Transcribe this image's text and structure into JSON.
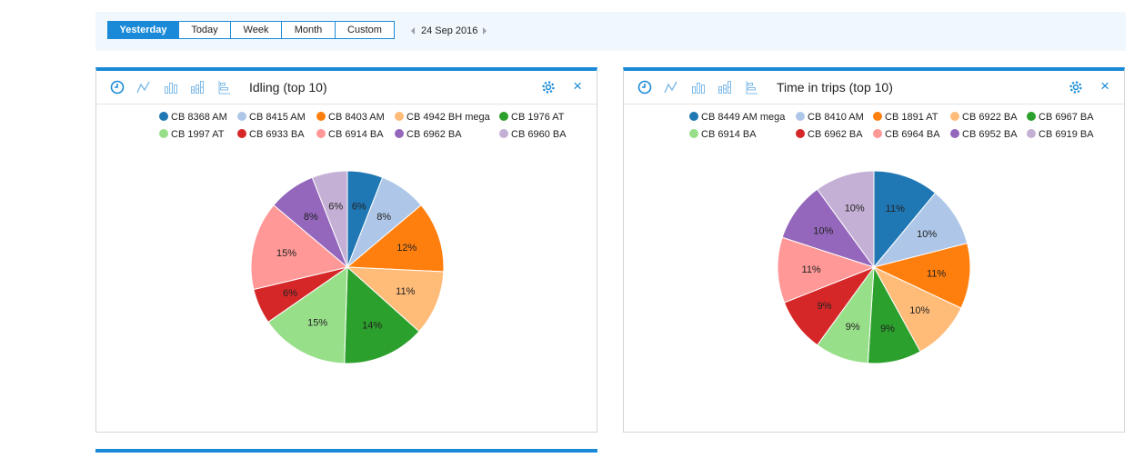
{
  "toolbar": {
    "periods": [
      "Yesterday",
      "Today",
      "Week",
      "Month",
      "Custom"
    ],
    "active_period": "Yesterday",
    "date": "24 Sep 2016"
  },
  "colors": {
    "accent": "#1a8ad8",
    "toolbar_bg": "#f0f8fe"
  },
  "panels": [
    {
      "title": "Idling (top 10)",
      "icons": [
        "clock-icon",
        "line-chart-icon",
        "bar-chart-icon",
        "stacked-bar-chart-icon",
        "horizontal-bar-chart-icon",
        "gear-icon",
        "close-icon"
      ],
      "close_label": "×"
    },
    {
      "title": "Time in trips (top 10)",
      "icons": [
        "clock-icon",
        "line-chart-icon",
        "bar-chart-icon",
        "stacked-bar-chart-icon",
        "horizontal-bar-chart-icon",
        "gear-icon",
        "close-icon"
      ],
      "close_label": "×"
    }
  ],
  "chart_data": [
    {
      "type": "pie",
      "title": "Idling (top 10)",
      "legend_position": "top",
      "slices": [
        {
          "label": "CB 8368 AM",
          "value": 6,
          "value_label": "6%",
          "color": "#1f77b4"
        },
        {
          "label": "CB 8415 AM",
          "value": 8,
          "value_label": "8%",
          "color": "#aec7e8"
        },
        {
          "label": "CB 8403 AM",
          "value": 12,
          "value_label": "12%",
          "color": "#ff7f0e"
        },
        {
          "label": "CB 4942 BH mega",
          "value": 11,
          "value_label": "11%",
          "color": "#ffbb78"
        },
        {
          "label": "CB 1976 AT",
          "value": 14,
          "value_label": "14%",
          "color": "#2ca02c"
        },
        {
          "label": "CB 1997 AT",
          "value": 15,
          "value_label": "15%",
          "color": "#98df8a"
        },
        {
          "label": "CB 6933 BA",
          "value": 6,
          "value_label": "6%",
          "color": "#d62728"
        },
        {
          "label": "CB 6914 BA",
          "value": 15,
          "value_label": "15%",
          "color": "#ff9896"
        },
        {
          "label": "CB 6962 BA",
          "value": 8,
          "value_label": "8%",
          "color": "#9467bd"
        },
        {
          "label": "CB 6960 BA",
          "value": 6,
          "value_label": "6%",
          "color": "#c5b0d5"
        }
      ]
    },
    {
      "type": "pie",
      "title": "Time in trips (top 10)",
      "legend_position": "top",
      "slices": [
        {
          "label": "CB 8449 AM mega",
          "value": 11,
          "value_label": "11%",
          "color": "#1f77b4"
        },
        {
          "label": "CB 8410 AM",
          "value": 10,
          "value_label": "10%",
          "color": "#aec7e8"
        },
        {
          "label": "CB 1891 AT",
          "value": 11,
          "value_label": "11%",
          "color": "#ff7f0e"
        },
        {
          "label": "CB 6922 BA",
          "value": 10,
          "value_label": "10%",
          "color": "#ffbb78"
        },
        {
          "label": "CB 6967 BA",
          "value": 9,
          "value_label": "9%",
          "color": "#2ca02c"
        },
        {
          "label": "CB 6914 BA",
          "value": 9,
          "value_label": "9%",
          "color": "#98df8a"
        },
        {
          "label": "CB 6962 BA",
          "value": 9,
          "value_label": "9%",
          "color": "#d62728"
        },
        {
          "label": "CB 6964 BA",
          "value": 11,
          "value_label": "11%",
          "color": "#ff9896"
        },
        {
          "label": "CB 6952 BA",
          "value": 10,
          "value_label": "10%",
          "color": "#9467bd"
        },
        {
          "label": "CB 6919 BA",
          "value": 10,
          "value_label": "10%",
          "color": "#c5b0d5"
        }
      ]
    }
  ]
}
